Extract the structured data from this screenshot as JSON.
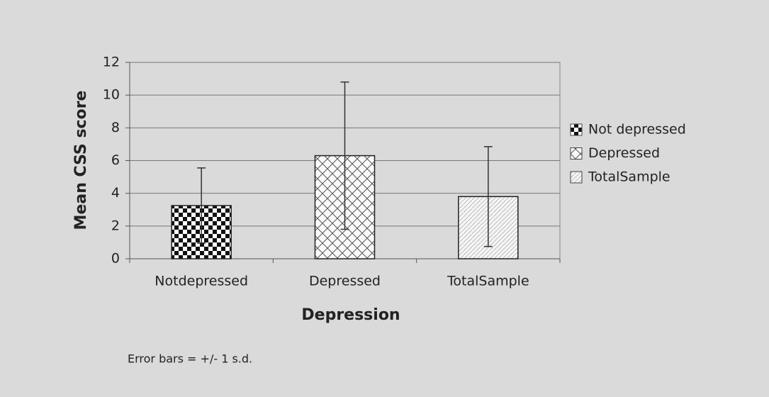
{
  "chart_data": {
    "type": "bar",
    "x_label": "Depression",
    "y_label": "Mean CSS score",
    "categories": [
      "Notdepressed",
      "Depressed",
      "TotalSample"
    ],
    "values": [
      3.25,
      6.3,
      3.8
    ],
    "errors": [
      2.3,
      4.5,
      3.05
    ],
    "patterns": [
      "checker",
      "cross",
      "diagonal"
    ],
    "legend": [
      "Not depressed",
      "Depressed",
      "TotalSample"
    ],
    "ylim": [
      0,
      12
    ],
    "yticks": [
      0,
      2,
      4,
      6,
      8,
      10,
      12
    ],
    "grid": true,
    "note": "Error bars = +/- 1 s.d."
  }
}
